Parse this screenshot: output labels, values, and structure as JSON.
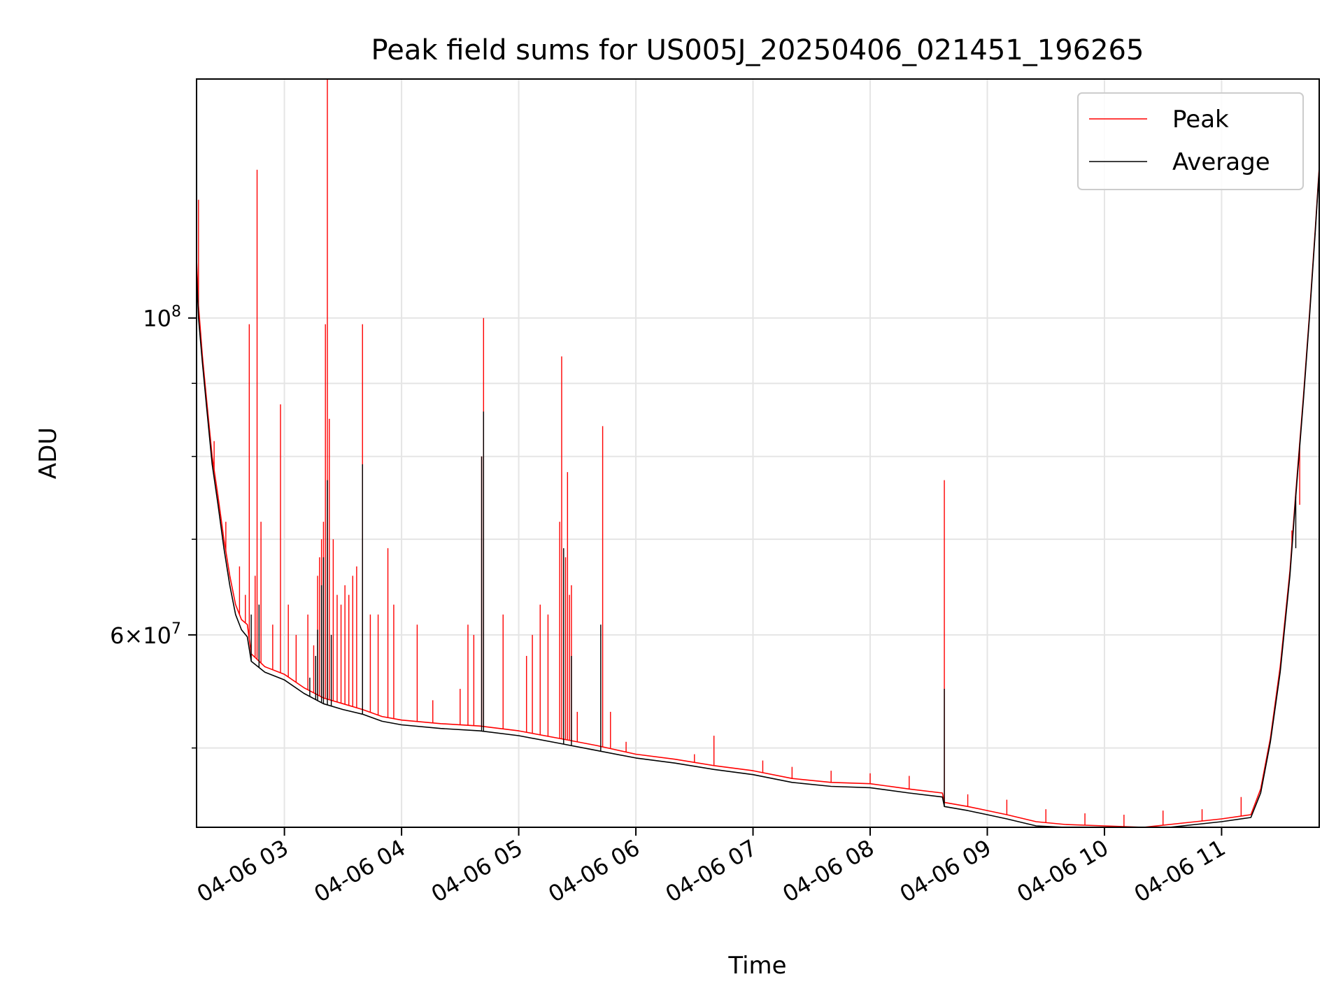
{
  "chart_data": {
    "type": "line",
    "title": "Peak field sums for US005J_20250406_021451_196265",
    "xlabel": "Time",
    "ylabel": "ADU",
    "yscale": "log",
    "grid": true,
    "legend_position": "top-right",
    "x_range": [
      "2025-04-06T02:15",
      "2025-04-06T11:50"
    ],
    "ylim": [
      44000000,
      147000000
    ],
    "x_ticks": [
      {
        "t": "2025-04-06T03:00",
        "label": "04-06 03"
      },
      {
        "t": "2025-04-06T04:00",
        "label": "04-06 04"
      },
      {
        "t": "2025-04-06T05:00",
        "label": "04-06 05"
      },
      {
        "t": "2025-04-06T06:00",
        "label": "04-06 06"
      },
      {
        "t": "2025-04-06T07:00",
        "label": "04-06 07"
      },
      {
        "t": "2025-04-06T08:00",
        "label": "04-06 08"
      },
      {
        "t": "2025-04-06T09:00",
        "label": "04-06 09"
      },
      {
        "t": "2025-04-06T10:00",
        "label": "04-06 10"
      },
      {
        "t": "2025-04-06T11:00",
        "label": "04-06 11"
      }
    ],
    "y_ticks": [
      {
        "value": 60000000,
        "label_base": "6×10",
        "label_exp": "7"
      },
      {
        "value": 100000000,
        "label_base": "10",
        "label_exp": "8"
      }
    ],
    "y_minor_ticks": [
      50000000,
      70000000,
      80000000,
      90000000
    ],
    "series": [
      {
        "name": "Average",
        "color": "#000000",
        "points": [
          [
            "2025-04-06T02:15",
            108000000
          ],
          [
            "2025-04-06T02:16",
            100000000
          ],
          [
            "2025-04-06T02:18",
            93000000
          ],
          [
            "2025-04-06T02:20",
            87000000
          ],
          [
            "2025-04-06T02:23",
            79000000
          ],
          [
            "2025-04-06T02:26",
            74000000
          ],
          [
            "2025-04-06T02:29",
            69000000
          ],
          [
            "2025-04-06T02:32",
            65000000
          ],
          [
            "2025-04-06T02:35",
            62000000
          ],
          [
            "2025-04-06T02:38",
            60500000
          ],
          [
            "2025-04-06T02:41",
            59800000
          ],
          [
            "2025-04-06T02:43",
            57500000
          ],
          [
            "2025-04-06T02:50",
            56500000
          ],
          [
            "2025-04-06T03:00",
            55800000
          ],
          [
            "2025-04-06T03:10",
            54600000
          ],
          [
            "2025-04-06T03:20",
            53700000
          ],
          [
            "2025-04-06T03:30",
            53200000
          ],
          [
            "2025-04-06T03:40",
            52800000
          ],
          [
            "2025-04-06T03:50",
            52200000
          ],
          [
            "2025-04-06T04:00",
            51900000
          ],
          [
            "2025-04-06T04:20",
            51600000
          ],
          [
            "2025-04-06T04:40",
            51400000
          ],
          [
            "2025-04-06T05:00",
            51000000
          ],
          [
            "2025-04-06T05:20",
            50400000
          ],
          [
            "2025-04-06T05:40",
            49800000
          ],
          [
            "2025-04-06T06:00",
            49200000
          ],
          [
            "2025-04-06T06:20",
            48800000
          ],
          [
            "2025-04-06T06:40",
            48300000
          ],
          [
            "2025-04-06T07:00",
            47900000
          ],
          [
            "2025-04-06T07:20",
            47300000
          ],
          [
            "2025-04-06T07:40",
            47000000
          ],
          [
            "2025-04-06T08:00",
            46900000
          ],
          [
            "2025-04-06T08:20",
            46500000
          ],
          [
            "2025-04-06T08:37",
            46200000
          ],
          [
            "2025-04-06T08:38",
            45500000
          ],
          [
            "2025-04-06T08:50",
            45200000
          ],
          [
            "2025-04-06T09:00",
            44900000
          ],
          [
            "2025-04-06T09:10",
            44600000
          ],
          [
            "2025-04-06T09:25",
            44100000
          ],
          [
            "2025-04-06T09:40",
            44000000
          ],
          [
            "2025-04-06T10:00",
            43900000
          ],
          [
            "2025-04-06T10:20",
            43800000
          ],
          [
            "2025-04-06T10:40",
            44100000
          ],
          [
            "2025-04-06T11:00",
            44400000
          ],
          [
            "2025-04-06T11:15",
            44700000
          ],
          [
            "2025-04-06T11:20",
            46500000
          ],
          [
            "2025-04-06T11:25",
            50500000
          ],
          [
            "2025-04-06T11:30",
            56500000
          ],
          [
            "2025-04-06T11:35",
            66000000
          ],
          [
            "2025-04-06T11:38",
            75000000
          ],
          [
            "2025-04-06T11:42",
            88000000
          ],
          [
            "2025-04-06T11:45",
            100000000
          ],
          [
            "2025-04-06T11:48",
            115000000
          ],
          [
            "2025-04-06T11:50",
            127000000
          ]
        ],
        "spikes": [
          [
            "2025-04-06T02:43",
            62000000
          ],
          [
            "2025-04-06T02:47",
            63000000
          ],
          [
            "2025-04-06T03:13",
            56000000
          ],
          [
            "2025-04-06T03:16",
            58000000
          ],
          [
            "2025-04-06T03:17",
            60500000
          ],
          [
            "2025-04-06T03:19",
            65000000
          ],
          [
            "2025-04-06T03:20",
            68000000
          ],
          [
            "2025-04-06T03:22",
            77000000
          ],
          [
            "2025-04-06T03:24",
            60000000
          ],
          [
            "2025-04-06T03:40",
            79000000
          ],
          [
            "2025-04-06T04:41",
            80000000
          ],
          [
            "2025-04-06T04:42",
            86000000
          ],
          [
            "2025-04-06T05:23",
            69000000
          ],
          [
            "2025-04-06T05:27",
            58000000
          ],
          [
            "2025-04-06T05:42",
            61000000
          ],
          [
            "2025-04-06T08:38",
            55000000
          ],
          [
            "2025-04-06T11:38",
            69000000
          ]
        ]
      },
      {
        "name": "Peak",
        "color": "#ff0000",
        "points": [
          [
            "2025-04-06T02:15",
            110000000
          ],
          [
            "2025-04-06T02:16",
            102000000
          ],
          [
            "2025-04-06T02:18",
            94000000
          ],
          [
            "2025-04-06T02:20",
            88000000
          ],
          [
            "2025-04-06T02:23",
            80000000
          ],
          [
            "2025-04-06T02:26",
            75000000
          ],
          [
            "2025-04-06T02:29",
            70000000
          ],
          [
            "2025-04-06T02:32",
            66000000
          ],
          [
            "2025-04-06T02:35",
            63000000
          ],
          [
            "2025-04-06T02:38",
            61500000
          ],
          [
            "2025-04-06T02:41",
            61000000
          ],
          [
            "2025-04-06T02:43",
            58200000
          ],
          [
            "2025-04-06T02:50",
            57000000
          ],
          [
            "2025-04-06T03:00",
            56300000
          ],
          [
            "2025-04-06T03:10",
            55100000
          ],
          [
            "2025-04-06T03:20",
            54200000
          ],
          [
            "2025-04-06T03:30",
            53700000
          ],
          [
            "2025-04-06T03:40",
            53200000
          ],
          [
            "2025-04-06T03:50",
            52600000
          ],
          [
            "2025-04-06T04:00",
            52300000
          ],
          [
            "2025-04-06T04:20",
            52000000
          ],
          [
            "2025-04-06T04:40",
            51800000
          ],
          [
            "2025-04-06T05:00",
            51400000
          ],
          [
            "2025-04-06T05:20",
            50800000
          ],
          [
            "2025-04-06T05:40",
            50200000
          ],
          [
            "2025-04-06T06:00",
            49500000
          ],
          [
            "2025-04-06T06:20",
            49100000
          ],
          [
            "2025-04-06T06:40",
            48600000
          ],
          [
            "2025-04-06T07:00",
            48200000
          ],
          [
            "2025-04-06T07:20",
            47600000
          ],
          [
            "2025-04-06T07:40",
            47300000
          ],
          [
            "2025-04-06T08:00",
            47200000
          ],
          [
            "2025-04-06T08:20",
            46800000
          ],
          [
            "2025-04-06T08:37",
            46500000
          ],
          [
            "2025-04-06T08:38",
            45800000
          ],
          [
            "2025-04-06T08:50",
            45500000
          ],
          [
            "2025-04-06T09:00",
            45200000
          ],
          [
            "2025-04-06T09:10",
            44900000
          ],
          [
            "2025-04-06T09:25",
            44400000
          ],
          [
            "2025-04-06T09:40",
            44200000
          ],
          [
            "2025-04-06T10:00",
            44100000
          ],
          [
            "2025-04-06T10:20",
            44000000
          ],
          [
            "2025-04-06T10:40",
            44300000
          ],
          [
            "2025-04-06T11:00",
            44600000
          ],
          [
            "2025-04-06T11:15",
            44900000
          ],
          [
            "2025-04-06T11:20",
            46800000
          ],
          [
            "2025-04-06T11:25",
            50800000
          ],
          [
            "2025-04-06T11:30",
            57000000
          ],
          [
            "2025-04-06T11:35",
            66500000
          ],
          [
            "2025-04-06T11:38",
            75500000
          ],
          [
            "2025-04-06T11:42",
            88500000
          ],
          [
            "2025-04-06T11:45",
            100500000
          ],
          [
            "2025-04-06T11:48",
            115500000
          ],
          [
            "2025-04-06T11:50",
            127500000
          ]
        ],
        "spikes": [
          [
            "2025-04-06T02:16",
            121000000
          ],
          [
            "2025-04-06T02:24",
            82000000
          ],
          [
            "2025-04-06T02:30",
            72000000
          ],
          [
            "2025-04-06T02:37",
            67000000
          ],
          [
            "2025-04-06T02:40",
            64000000
          ],
          [
            "2025-04-06T02:42",
            99000000
          ],
          [
            "2025-04-06T02:45",
            66000000
          ],
          [
            "2025-04-06T02:46",
            127000000
          ],
          [
            "2025-04-06T02:48",
            72000000
          ],
          [
            "2025-04-06T02:54",
            61000000
          ],
          [
            "2025-04-06T02:58",
            87000000
          ],
          [
            "2025-04-06T03:02",
            63000000
          ],
          [
            "2025-04-06T03:06",
            60000000
          ],
          [
            "2025-04-06T03:12",
            62000000
          ],
          [
            "2025-04-06T03:15",
            59000000
          ],
          [
            "2025-04-06T03:17",
            66000000
          ],
          [
            "2025-04-06T03:18",
            68000000
          ],
          [
            "2025-04-06T03:19",
            70000000
          ],
          [
            "2025-04-06T03:20",
            72000000
          ],
          [
            "2025-04-06T03:21",
            99000000
          ],
          [
            "2025-04-06T03:22",
            147000000
          ],
          [
            "2025-04-06T03:23",
            85000000
          ],
          [
            "2025-04-06T03:25",
            70000000
          ],
          [
            "2025-04-06T03:27",
            64000000
          ],
          [
            "2025-04-06T03:29",
            63000000
          ],
          [
            "2025-04-06T03:31",
            65000000
          ],
          [
            "2025-04-06T03:33",
            64000000
          ],
          [
            "2025-04-06T03:35",
            66000000
          ],
          [
            "2025-04-06T03:37",
            67000000
          ],
          [
            "2025-04-06T03:40",
            99000000
          ],
          [
            "2025-04-06T03:44",
            62000000
          ],
          [
            "2025-04-06T03:48",
            62000000
          ],
          [
            "2025-04-06T03:53",
            69000000
          ],
          [
            "2025-04-06T03:56",
            63000000
          ],
          [
            "2025-04-06T04:08",
            61000000
          ],
          [
            "2025-04-06T04:16",
            54000000
          ],
          [
            "2025-04-06T04:30",
            55000000
          ],
          [
            "2025-04-06T04:34",
            61000000
          ],
          [
            "2025-04-06T04:37",
            60000000
          ],
          [
            "2025-04-06T04:41",
            80000000
          ],
          [
            "2025-04-06T04:42",
            100000000
          ],
          [
            "2025-04-06T04:52",
            62000000
          ],
          [
            "2025-04-06T05:04",
            58000000
          ],
          [
            "2025-04-06T05:07",
            60000000
          ],
          [
            "2025-04-06T05:11",
            63000000
          ],
          [
            "2025-04-06T05:15",
            62000000
          ],
          [
            "2025-04-06T05:21",
            72000000
          ],
          [
            "2025-04-06T05:22",
            94000000
          ],
          [
            "2025-04-06T05:24",
            68000000
          ],
          [
            "2025-04-06T05:25",
            78000000
          ],
          [
            "2025-04-06T05:26",
            64000000
          ],
          [
            "2025-04-06T05:27",
            65000000
          ],
          [
            "2025-04-06T05:30",
            53000000
          ],
          [
            "2025-04-06T05:43",
            84000000
          ],
          [
            "2025-04-06T05:47",
            53000000
          ],
          [
            "2025-04-06T05:55",
            50500000
          ],
          [
            "2025-04-06T06:30",
            49500000
          ],
          [
            "2025-04-06T06:40",
            51000000
          ],
          [
            "2025-04-06T07:05",
            49000000
          ],
          [
            "2025-04-06T07:20",
            48500000
          ],
          [
            "2025-04-06T07:40",
            48200000
          ],
          [
            "2025-04-06T08:00",
            48000000
          ],
          [
            "2025-04-06T08:20",
            47800000
          ],
          [
            "2025-04-06T08:38",
            77000000
          ],
          [
            "2025-04-06T08:50",
            46400000
          ],
          [
            "2025-04-06T09:10",
            46000000
          ],
          [
            "2025-04-06T09:30",
            45300000
          ],
          [
            "2025-04-06T09:50",
            45000000
          ],
          [
            "2025-04-06T10:10",
            44900000
          ],
          [
            "2025-04-06T10:30",
            45200000
          ],
          [
            "2025-04-06T10:50",
            45300000
          ],
          [
            "2025-04-06T11:10",
            46200000
          ],
          [
            "2025-04-06T11:36",
            71000000
          ],
          [
            "2025-04-06T11:40",
            74000000
          ]
        ]
      }
    ],
    "legend": [
      {
        "name": "Peak",
        "color": "#ff0000"
      },
      {
        "name": "Average",
        "color": "#000000"
      }
    ]
  }
}
